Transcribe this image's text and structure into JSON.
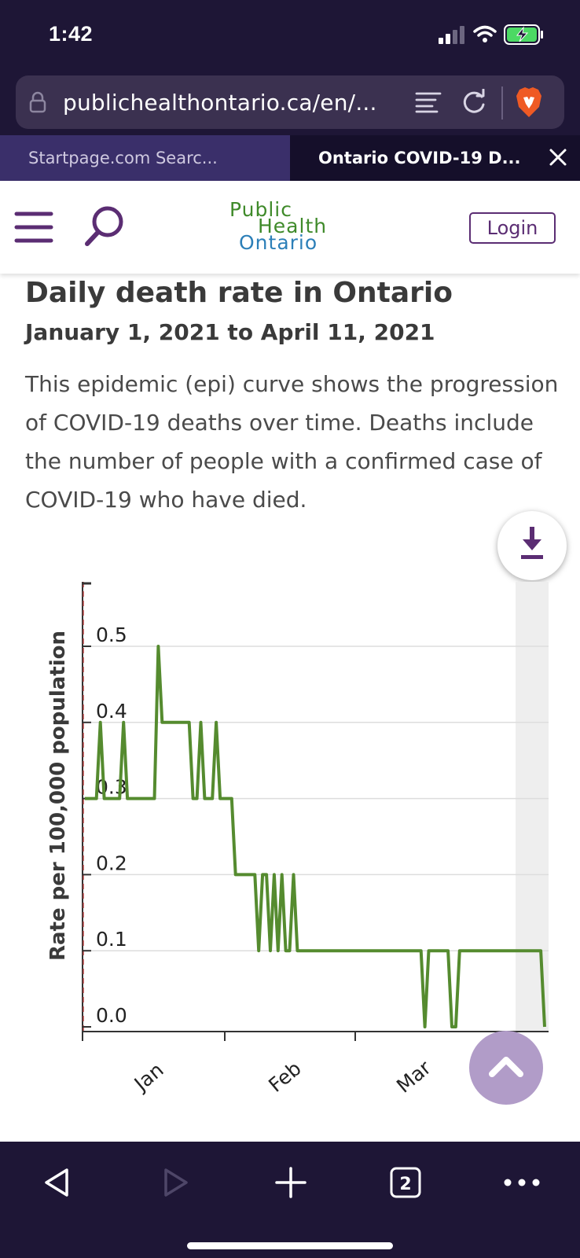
{
  "status_bar": {
    "time": "1:42"
  },
  "browser": {
    "url": "publichealthontario.ca/en/...",
    "tabs": [
      {
        "label": "Startpage.com Searc...",
        "active": false
      },
      {
        "label": "Ontario COVID-19 D...",
        "active": true
      }
    ],
    "tab_count": "2"
  },
  "header": {
    "logo_lines": [
      "Public",
      "Health",
      "Ontario"
    ],
    "login_label": "Login"
  },
  "content": {
    "title": "Daily death rate in Ontario",
    "subtitle": "January 1, 2021 to April 11, 2021",
    "description": "This epidemic (epi) curve shows the progression of COVID-19 deaths over time. Deaths include the number of people with a confirmed case of COVID-19 who have died."
  },
  "colors": {
    "line": "#558b2f",
    "brand_purple": "#5b2d73",
    "chrome_bg": "#1e1636"
  },
  "chart_data": {
    "type": "line",
    "ylabel": "Rate per 100,000 population",
    "xlabel": "",
    "y_ticks": [
      "0.0",
      "0.1",
      "0.2",
      "0.3",
      "0.4",
      "0.5"
    ],
    "x_ticks": [
      "Jan",
      "Feb",
      "Mar"
    ],
    "ylim": [
      0,
      0.6
    ],
    "grid": true,
    "series": [
      {
        "values": [
          0.3,
          0.3,
          0.3,
          0.3,
          0.4,
          0.3,
          0.3,
          0.3,
          0.3,
          0.3,
          0.4,
          0.3,
          0.3,
          0.3,
          0.3,
          0.3,
          0.3,
          0.3,
          0.3,
          0.5,
          0.4,
          0.4,
          0.4,
          0.4,
          0.4,
          0.4,
          0.4,
          0.4,
          0.3,
          0.3,
          0.4,
          0.3,
          0.3,
          0.3,
          0.4,
          0.3,
          0.3,
          0.3,
          0.3,
          0.2,
          0.2,
          0.2,
          0.2,
          0.2,
          0.2,
          0.1,
          0.2,
          0.2,
          0.1,
          0.2,
          0.1,
          0.2,
          0.1,
          0.1,
          0.2,
          0.1,
          0.1,
          0.1,
          0.1,
          0.1,
          0.1,
          0.1,
          0.1,
          0.1,
          0.1,
          0.1,
          0.1,
          0.1,
          0.1,
          0.1,
          0.1,
          0.1,
          0.1,
          0.1,
          0.1,
          0.1,
          0.1,
          0.1,
          0.1,
          0.1,
          0.1,
          0.1,
          0.1,
          0.1,
          0.1,
          0.1,
          0.1,
          0.1,
          0.0,
          0.1,
          0.1,
          0.1,
          0.1,
          0.1,
          0.1,
          0.0,
          0.0,
          0.1,
          0.1,
          0.1,
          0.1,
          0.1,
          0.1,
          0.1,
          0.1,
          0.1,
          0.1,
          0.1,
          0.1,
          0.1,
          0.1,
          0.1,
          0.1,
          0.1,
          0.1,
          0.1,
          0.1,
          0.1,
          0.1,
          0.0
        ]
      }
    ]
  }
}
